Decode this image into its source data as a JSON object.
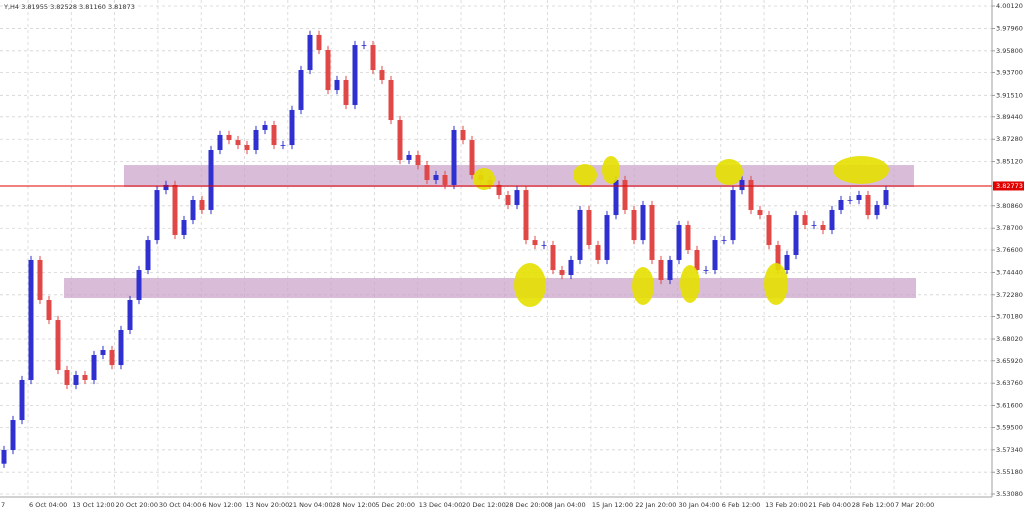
{
  "chart_data": {
    "type": "candlestick",
    "title": "Y,H4 3.81955 3.82528 3.81160 3.81873",
    "up_color": "#3030d0",
    "down_color": "#e04848",
    "grid": true,
    "ylim": [
      3.5279,
      4.007
    ],
    "yticks": [
      {
        "value": 4.0012,
        "label": "4.00120"
      },
      {
        "value": 3.9796,
        "label": "3.97960"
      },
      {
        "value": 3.958,
        "label": "3.95800"
      },
      {
        "value": 3.937,
        "label": "3.93700"
      },
      {
        "value": 3.9151,
        "label": "3.91510"
      },
      {
        "value": 3.8944,
        "label": "3.89440"
      },
      {
        "value": 3.8728,
        "label": "3.87280"
      },
      {
        "value": 3.8512,
        "label": "3.85120"
      },
      {
        "value": 3.8086,
        "label": "3.80860"
      },
      {
        "value": 3.787,
        "label": "3.78700"
      },
      {
        "value": 3.766,
        "label": "3.76600"
      },
      {
        "value": 3.7444,
        "label": "3.74440"
      },
      {
        "value": 3.7228,
        "label": "3.72280"
      },
      {
        "value": 3.7018,
        "label": "3.70180"
      },
      {
        "value": 3.6802,
        "label": "3.68020"
      },
      {
        "value": 3.6592,
        "label": "3.65920"
      },
      {
        "value": 3.6376,
        "label": "3.63760"
      },
      {
        "value": 3.616,
        "label": "3.61600"
      },
      {
        "value": 3.595,
        "label": "3.59500"
      },
      {
        "value": 3.5734,
        "label": "3.57340"
      },
      {
        "value": 3.5518,
        "label": "3.55180"
      },
      {
        "value": 3.5308,
        "label": "3.53080"
      }
    ],
    "x_labels": [
      "7",
      "6 Oct 04:00",
      "13 Oct 12:00",
      "20 Oct 20:00",
      "30 Oct 04:00",
      "6 Nov 12:00",
      "13 Nov 20:00",
      "21 Nov 04:00",
      "28 Nov 12:00",
      "5 Dec 20:00",
      "13 Dec 04:00",
      "20 Dec 12:00",
      "28 Dec 20:00",
      "8 Jan 04:00",
      "15 Jan 12:00",
      "22 Jan 20:00",
      "30 Jan 04:00",
      "6 Feb 12:00",
      "13 Feb 20:00",
      "21 Feb 04:00",
      "28 Feb 12:00",
      "7 Mar 20:00"
    ],
    "current_price": {
      "value": 3.82773,
      "label": "3.82773",
      "color": "#e00000"
    },
    "zones": [
      {
        "high": 3.8479,
        "low": 3.8267,
        "color": "#c8a0c8"
      },
      {
        "high": 3.739,
        "low": 3.7197,
        "color": "#c8a0c8"
      }
    ],
    "open": [
      3.56,
      3.5732,
      3.6021,
      3.6407,
      3.7564,
      3.7178,
      3.6985,
      3.6503,
      3.6359,
      3.6455,
      3.6407,
      3.6648,
      3.6696,
      3.6551,
      3.6889,
      3.7178,
      3.7467,
      3.7756,
      3.8238,
      3.8287,
      3.7805,
      3.7949,
      3.8142,
      3.8046,
      3.8624,
      3.8769,
      3.872,
      3.8672,
      3.8624,
      3.8817,
      3.8865,
      3.8672,
      3.8672,
      3.901,
      3.9395,
      3.9733,
      3.9588,
      3.9202,
      3.9299,
      3.9058,
      3.9636,
      3.9636,
      3.9395,
      3.9299,
      3.8913,
      3.8528,
      3.8576,
      3.8479,
      3.8335,
      3.8383,
      3.8287,
      3.8817,
      3.872,
      3.8383,
      3.8335,
      3.8287,
      3.819,
      3.8094,
      3.8238,
      3.7756,
      3.7708,
      3.7708,
      3.7467,
      3.7419,
      3.7564,
      3.8046,
      3.7708,
      3.7564,
      3.7997,
      3.8335,
      3.8046,
      3.7756,
      3.8094,
      3.7564,
      3.7371,
      3.7564,
      3.7901,
      3.766,
      3.7467,
      3.7467,
      3.7756,
      3.7756,
      3.8238,
      3.8335,
      3.8046,
      3.7997,
      3.7708,
      3.7467,
      3.7612,
      3.7997,
      3.7901,
      3.7901,
      3.7853,
      3.8046,
      3.8142,
      3.8142,
      3.819,
      3.7997,
      3.8094
    ],
    "high": [
      3.5772,
      3.6061,
      3.6447,
      3.7604,
      3.7604,
      3.7218,
      3.7025,
      3.6543,
      3.6495,
      3.6495,
      3.6688,
      3.6736,
      3.6736,
      3.6929,
      3.7218,
      3.7507,
      3.7796,
      3.8278,
      3.8327,
      3.8327,
      3.7989,
      3.8182,
      3.8182,
      3.8664,
      3.8809,
      3.8809,
      3.876,
      3.8712,
      3.8857,
      3.8905,
      3.8905,
      3.8712,
      3.905,
      3.9435,
      3.9773,
      3.9773,
      3.9628,
      3.9339,
      3.9339,
      3.9676,
      3.9676,
      3.9676,
      3.9435,
      3.9339,
      3.8953,
      3.8616,
      3.8616,
      3.8519,
      3.8423,
      3.8423,
      3.8857,
      3.8857,
      3.876,
      3.8423,
      3.8375,
      3.8327,
      3.823,
      3.8278,
      3.8278,
      3.7796,
      3.7748,
      3.7748,
      3.7507,
      3.7604,
      3.8086,
      3.8086,
      3.7748,
      3.8037,
      3.8375,
      3.8375,
      3.8086,
      3.8134,
      3.8134,
      3.7604,
      3.7604,
      3.7941,
      3.7941,
      3.77,
      3.7507,
      3.7796,
      3.7796,
      3.8278,
      3.8375,
      3.8375,
      3.8086,
      3.8037,
      3.7748,
      3.7652,
      3.8037,
      3.8037,
      3.7941,
      3.7941,
      3.8086,
      3.8182,
      3.8182,
      3.823,
      3.823,
      3.8134,
      3.8278
    ],
    "low": [
      3.556,
      3.5692,
      3.5981,
      3.6367,
      3.7138,
      3.6945,
      3.6463,
      3.6319,
      3.6319,
      3.6367,
      3.6367,
      3.6608,
      3.6511,
      3.6511,
      3.6849,
      3.7138,
      3.7427,
      3.7716,
      3.8198,
      3.7765,
      3.7765,
      3.7909,
      3.8006,
      3.8006,
      3.8584,
      3.868,
      3.8632,
      3.8584,
      3.8584,
      3.8777,
      3.8632,
      3.8632,
      3.8632,
      3.897,
      3.9355,
      3.9548,
      3.9162,
      3.9162,
      3.9018,
      3.9018,
      3.9596,
      3.9355,
      3.9259,
      3.8873,
      3.8488,
      3.8488,
      3.8439,
      3.8295,
      3.8295,
      3.8247,
      3.8247,
      3.868,
      3.8343,
      3.8295,
      3.8247,
      3.815,
      3.8054,
      3.8054,
      3.7716,
      3.7668,
      3.7668,
      3.7427,
      3.7379,
      3.7379,
      3.7524,
      3.7668,
      3.7524,
      3.7524,
      3.7957,
      3.8006,
      3.7716,
      3.7716,
      3.7524,
      3.7331,
      3.7331,
      3.7524,
      3.762,
      3.7427,
      3.7427,
      3.7427,
      3.7716,
      3.7716,
      3.8198,
      3.8006,
      3.7957,
      3.7668,
      3.7427,
      3.7427,
      3.7572,
      3.7861,
      3.7861,
      3.7813,
      3.7813,
      3.8006,
      3.8102,
      3.8102,
      3.7957,
      3.7957,
      3.8054
    ],
    "close": [
      3.5732,
      3.6021,
      3.6407,
      3.7564,
      3.7178,
      3.6985,
      3.6503,
      3.6359,
      3.6455,
      3.6407,
      3.6648,
      3.6696,
      3.6551,
      3.6889,
      3.7178,
      3.7467,
      3.7756,
      3.8238,
      3.8287,
      3.7805,
      3.7949,
      3.8142,
      3.8046,
      3.8624,
      3.8769,
      3.872,
      3.8672,
      3.8624,
      3.8817,
      3.8865,
      3.8672,
      3.8672,
      3.901,
      3.9395,
      3.9733,
      3.9588,
      3.9202,
      3.9299,
      3.9058,
      3.9636,
      3.9636,
      3.9395,
      3.9299,
      3.8913,
      3.8528,
      3.8576,
      3.8479,
      3.8335,
      3.8383,
      3.8287,
      3.8817,
      3.872,
      3.8383,
      3.8335,
      3.8287,
      3.819,
      3.8094,
      3.8238,
      3.7756,
      3.7708,
      3.7708,
      3.7467,
      3.7419,
      3.7564,
      3.8046,
      3.7708,
      3.7564,
      3.7997,
      3.8335,
      3.8046,
      3.7756,
      3.8094,
      3.7564,
      3.7371,
      3.7564,
      3.7901,
      3.766,
      3.7467,
      3.7467,
      3.7756,
      3.7756,
      3.8238,
      3.8335,
      3.8046,
      3.7997,
      3.7708,
      3.7467,
      3.7612,
      3.7997,
      3.7901,
      3.7901,
      3.7853,
      3.8046,
      3.8142,
      3.8142,
      3.819,
      3.7997,
      3.8094,
      3.8238
    ]
  }
}
